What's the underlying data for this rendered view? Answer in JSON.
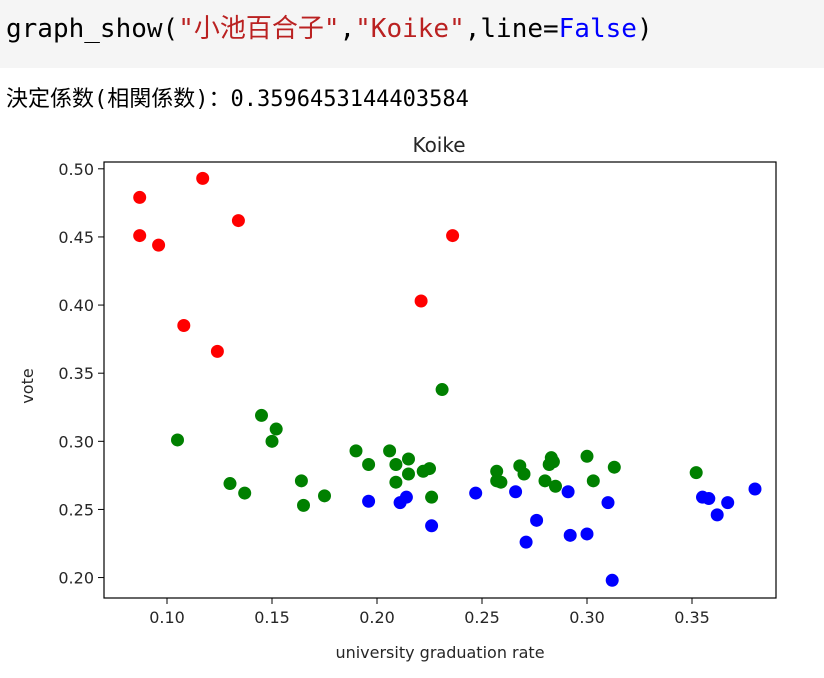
{
  "code_cell": {
    "fn": "graph_show(",
    "arg1": "\"小池百合子\"",
    "comma": ",",
    "arg2": "\"Koike\"",
    "kwarg": ",line=",
    "kw_value": "False",
    "close": ")"
  },
  "output": {
    "text": "決定係数(相関係数)：0.3596453144403584"
  },
  "chart_data": {
    "type": "scatter",
    "title": "Koike",
    "xlabel": "university graduation rate",
    "ylabel": "vote",
    "xlim": [
      0.07,
      0.39
    ],
    "ylim": [
      0.185,
      0.505
    ],
    "xticks": [
      0.1,
      0.15,
      0.2,
      0.25,
      0.3,
      0.35
    ],
    "xtick_labels": [
      "0.10",
      "0.15",
      "0.20",
      "0.25",
      "0.30",
      "0.35"
    ],
    "yticks": [
      0.2,
      0.25,
      0.3,
      0.35,
      0.4,
      0.45,
      0.5
    ],
    "ytick_labels": [
      "0.20",
      "0.25",
      "0.30",
      "0.35",
      "0.40",
      "0.45",
      "0.50"
    ],
    "colors": {
      "red": "#ff0000",
      "green": "#008000",
      "blue": "#0000ff"
    },
    "series": [
      {
        "color": "red",
        "points": [
          [
            0.087,
            0.479
          ],
          [
            0.087,
            0.451
          ],
          [
            0.096,
            0.444
          ],
          [
            0.117,
            0.493
          ],
          [
            0.134,
            0.462
          ],
          [
            0.108,
            0.385
          ],
          [
            0.124,
            0.366
          ],
          [
            0.221,
            0.403
          ],
          [
            0.236,
            0.451
          ]
        ]
      },
      {
        "color": "green",
        "points": [
          [
            0.105,
            0.301
          ],
          [
            0.13,
            0.269
          ],
          [
            0.137,
            0.262
          ],
          [
            0.145,
            0.319
          ],
          [
            0.15,
            0.3
          ],
          [
            0.152,
            0.309
          ],
          [
            0.164,
            0.271
          ],
          [
            0.165,
            0.253
          ],
          [
            0.175,
            0.26
          ],
          [
            0.19,
            0.293
          ],
          [
            0.196,
            0.283
          ],
          [
            0.206,
            0.293
          ],
          [
            0.209,
            0.283
          ],
          [
            0.209,
            0.27
          ],
          [
            0.215,
            0.287
          ],
          [
            0.215,
            0.276
          ],
          [
            0.222,
            0.278
          ],
          [
            0.225,
            0.28
          ],
          [
            0.226,
            0.259
          ],
          [
            0.231,
            0.338
          ],
          [
            0.257,
            0.278
          ],
          [
            0.257,
            0.271
          ],
          [
            0.259,
            0.27
          ],
          [
            0.268,
            0.282
          ],
          [
            0.27,
            0.276
          ],
          [
            0.28,
            0.271
          ],
          [
            0.282,
            0.283
          ],
          [
            0.283,
            0.288
          ],
          [
            0.284,
            0.285
          ],
          [
            0.285,
            0.267
          ],
          [
            0.3,
            0.289
          ],
          [
            0.303,
            0.271
          ],
          [
            0.313,
            0.281
          ],
          [
            0.352,
            0.277
          ]
        ]
      },
      {
        "color": "blue",
        "points": [
          [
            0.196,
            0.256
          ],
          [
            0.211,
            0.255
          ],
          [
            0.214,
            0.259
          ],
          [
            0.226,
            0.238
          ],
          [
            0.247,
            0.262
          ],
          [
            0.266,
            0.263
          ],
          [
            0.271,
            0.226
          ],
          [
            0.276,
            0.242
          ],
          [
            0.291,
            0.263
          ],
          [
            0.292,
            0.231
          ],
          [
            0.3,
            0.232
          ],
          [
            0.31,
            0.255
          ],
          [
            0.312,
            0.198
          ],
          [
            0.355,
            0.259
          ],
          [
            0.358,
            0.258
          ],
          [
            0.362,
            0.246
          ],
          [
            0.367,
            0.255
          ],
          [
            0.38,
            0.265
          ]
        ]
      }
    ]
  }
}
